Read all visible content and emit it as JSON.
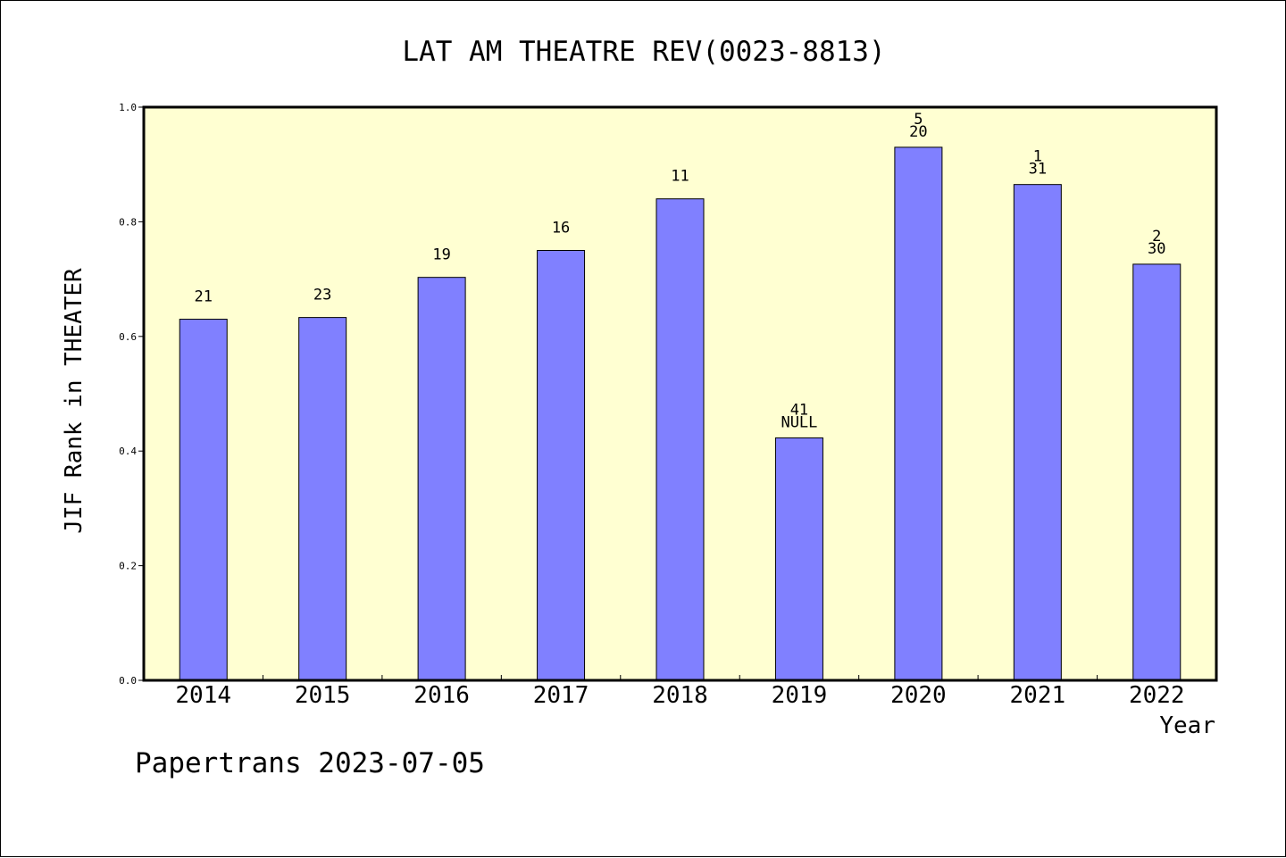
{
  "chart_data": {
    "type": "bar",
    "title": "LAT AM THEATRE REV(0023-8813)",
    "ylabel": "JIF Rank in THEATER",
    "xlabel": "Year",
    "ylim": [
      0,
      1.0
    ],
    "yticks": [
      "0.0",
      "0.2",
      "0.4",
      "0.6",
      "0.8",
      "1.0"
    ],
    "categories": [
      "2014",
      "2015",
      "2016",
      "2017",
      "2018",
      "2019",
      "2020",
      "2021",
      "2022"
    ],
    "values": [
      0.63,
      0.633,
      0.703,
      0.75,
      0.84,
      0.423,
      0.93,
      0.865,
      0.726
    ],
    "bar_labels": [
      [
        "21"
      ],
      [
        "23"
      ],
      [
        "19"
      ],
      [
        "16"
      ],
      [
        "11"
      ],
      [
        "41",
        "NULL"
      ],
      [
        "5",
        "20"
      ],
      [
        "1",
        "31"
      ],
      [
        "2",
        "30"
      ]
    ],
    "grid": false,
    "colors": {
      "plot_background": "#ffffd2",
      "bar_fill": "#8080ff",
      "bar_stroke": "#000000",
      "axis": "#000000"
    }
  },
  "footer": "Papertrans 2023-07-05"
}
